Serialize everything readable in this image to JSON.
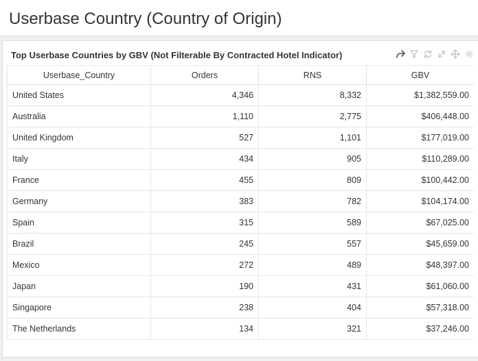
{
  "page": {
    "title": "Userbase Country (Country of Origin)"
  },
  "panel": {
    "title": "Top Userbase Countries by GBV (Not Filterable By Contracted Hotel Indicator)",
    "toolbar_icons": [
      "share-icon",
      "filter-icon",
      "refresh-icon",
      "expand-icon",
      "move-icon",
      "settings-icon"
    ]
  },
  "table": {
    "columns": [
      "Userbase_Country",
      "Orders",
      "RNS",
      "GBV"
    ],
    "rows": [
      [
        "United States",
        "4,346",
        "8,332",
        "$1,382,559.00"
      ],
      [
        "Australia",
        "1,110",
        "2,775",
        "$406,448.00"
      ],
      [
        "United Kingdom",
        "527",
        "1,101",
        "$177,019.00"
      ],
      [
        "Italy",
        "434",
        "905",
        "$110,289.00"
      ],
      [
        "France",
        "455",
        "809",
        "$100,442.00"
      ],
      [
        "Germany",
        "383",
        "782",
        "$104,174.00"
      ],
      [
        "Spain",
        "315",
        "589",
        "$67,025.00"
      ],
      [
        "Brazil",
        "245",
        "557",
        "$45,659.00"
      ],
      [
        "Mexico",
        "272",
        "489",
        "$48,397.00"
      ],
      [
        "Japan",
        "190",
        "431",
        "$61,060.00"
      ],
      [
        "Singapore",
        "238",
        "404",
        "$57,318.00"
      ],
      [
        "The Netherlands",
        "134",
        "321",
        "$37,246.00"
      ]
    ]
  }
}
